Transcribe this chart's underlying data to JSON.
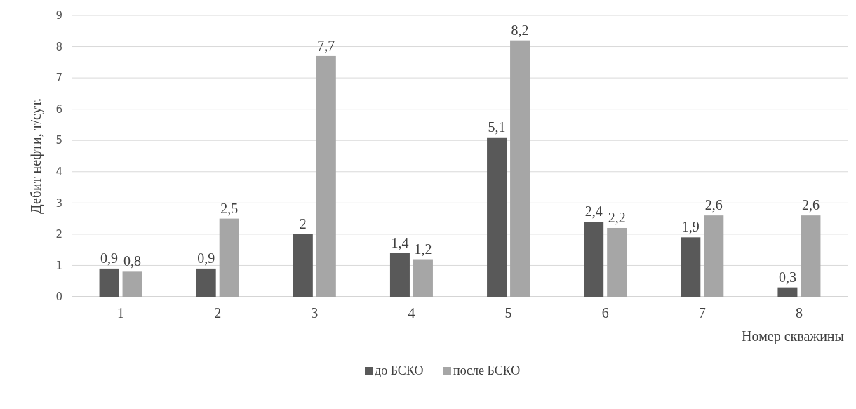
{
  "chart_data": {
    "type": "bar",
    "categories": [
      "1",
      "2",
      "3",
      "4",
      "5",
      "6",
      "7",
      "8"
    ],
    "series": [
      {
        "name": "до БСКО",
        "color": "#595959",
        "values": [
          0.9,
          0.9,
          2,
          1.4,
          5.1,
          2.4,
          1.9,
          0.3
        ],
        "value_labels": [
          "0,9",
          "0,9",
          "2",
          "1,4",
          "5,1",
          "2,4",
          "1,9",
          "0,3"
        ]
      },
      {
        "name": "после БСКО",
        "color": "#a6a6a6",
        "values": [
          0.8,
          2.5,
          7.7,
          1.2,
          8.2,
          2.2,
          2.6,
          2.6
        ],
        "value_labels": [
          "0,8",
          "2,5",
          "7,7",
          "1,2",
          "8,2",
          "2,2",
          "2,6",
          "2,6"
        ]
      }
    ],
    "xlabel": "Номер скважины",
    "ylabel": "Дебит нефти, т/сут.",
    "ylim": [
      0,
      9
    ],
    "yticks": [
      0,
      1,
      2,
      3,
      4,
      5,
      6,
      7,
      8,
      9
    ],
    "grid": "y",
    "legend": "bottom"
  }
}
